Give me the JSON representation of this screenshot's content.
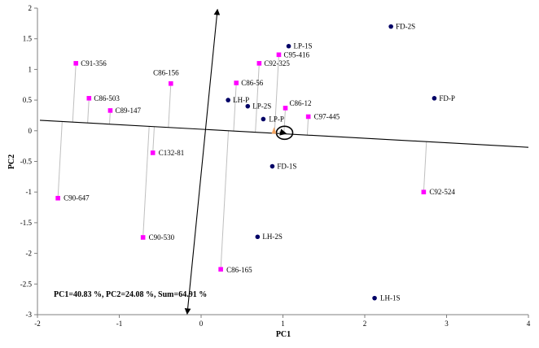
{
  "chart_data": {
    "type": "scatter",
    "xlabel": "PC1",
    "ylabel": "PC2",
    "xlim": [
      -2,
      4
    ],
    "ylim": [
      -3,
      2
    ],
    "xticks": [
      -2,
      -1,
      0,
      1,
      2,
      3,
      4
    ],
    "yticks": [
      -3,
      -2.5,
      -2,
      -1.5,
      -1,
      -0.5,
      0,
      0.5,
      1,
      1.5,
      2
    ],
    "grid": false,
    "annotation": "PC1=40.83 %, PC2=24.08 %, Sum=64.91 %",
    "series": [
      {
        "marker": "square",
        "color": "#ff00ff",
        "points": [
          {
            "label": "C91-356",
            "x": -1.53,
            "y": 1.1
          },
          {
            "label": "C86-503",
            "x": -1.37,
            "y": 0.53
          },
          {
            "label": "C89-147",
            "x": -1.11,
            "y": 0.33
          },
          {
            "label": "C86-156",
            "x": -0.37,
            "y": 0.77
          },
          {
            "label": "C132-81",
            "x": -0.59,
            "y": -0.36
          },
          {
            "label": "C90-647",
            "x": -1.75,
            "y": -1.1
          },
          {
            "label": "C90-530",
            "x": -0.71,
            "y": -1.74
          },
          {
            "label": "C86-165",
            "x": 0.24,
            "y": -2.26
          },
          {
            "label": "C86-56",
            "x": 0.43,
            "y": 0.78
          },
          {
            "label": "C92-325",
            "x": 0.71,
            "y": 1.1
          },
          {
            "label": "C95-416",
            "x": 0.95,
            "y": 1.24
          },
          {
            "label": "C86-12",
            "x": 1.03,
            "y": 0.37
          },
          {
            "label": "C97-445",
            "x": 1.31,
            "y": 0.23
          },
          {
            "label": "C92-524",
            "x": 2.72,
            "y": -1.0
          }
        ]
      },
      {
        "marker": "circle",
        "color": "#000066",
        "points": [
          {
            "label": "FD-2S",
            "x": 2.32,
            "y": 1.7
          },
          {
            "label": "LP-1S",
            "x": 1.07,
            "y": 1.38
          },
          {
            "label": "LH-P",
            "x": 0.33,
            "y": 0.5
          },
          {
            "label": "LP-2S",
            "x": 0.57,
            "y": 0.4
          },
          {
            "label": "LP-P",
            "x": 0.76,
            "y": 0.19
          },
          {
            "label": "FD-P",
            "x": 2.85,
            "y": 0.53
          },
          {
            "label": "FD-1S",
            "x": 0.87,
            "y": -0.58
          },
          {
            "label": "LH-2S",
            "x": 0.69,
            "y": -1.73
          },
          {
            "label": "LH-1S",
            "x": 2.12,
            "y": -2.73
          }
        ]
      }
    ],
    "projection_line": {
      "from": [
        -1.97,
        0.17
      ],
      "to": [
        4.0,
        -0.27
      ]
    },
    "perpendicular_arrow": {
      "from": [
        -0.17,
        -2.99
      ],
      "to": [
        0.2,
        1.98
      ]
    },
    "mean_marker": {
      "x": 1.0,
      "y": -0.06
    }
  }
}
